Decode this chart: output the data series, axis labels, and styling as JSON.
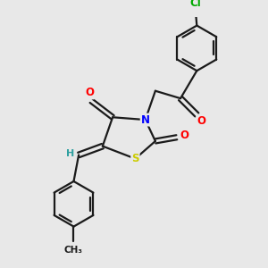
{
  "bg_color": "#e8e8e8",
  "bond_color": "#1a1a1a",
  "atom_colors": {
    "O": "#ff0000",
    "N": "#0000ff",
    "S": "#cccc00",
    "Cl": "#00aa00",
    "H": "#2fa0a0",
    "C": "#1a1a1a"
  },
  "figsize": [
    3.0,
    3.0
  ],
  "dpi": 100
}
